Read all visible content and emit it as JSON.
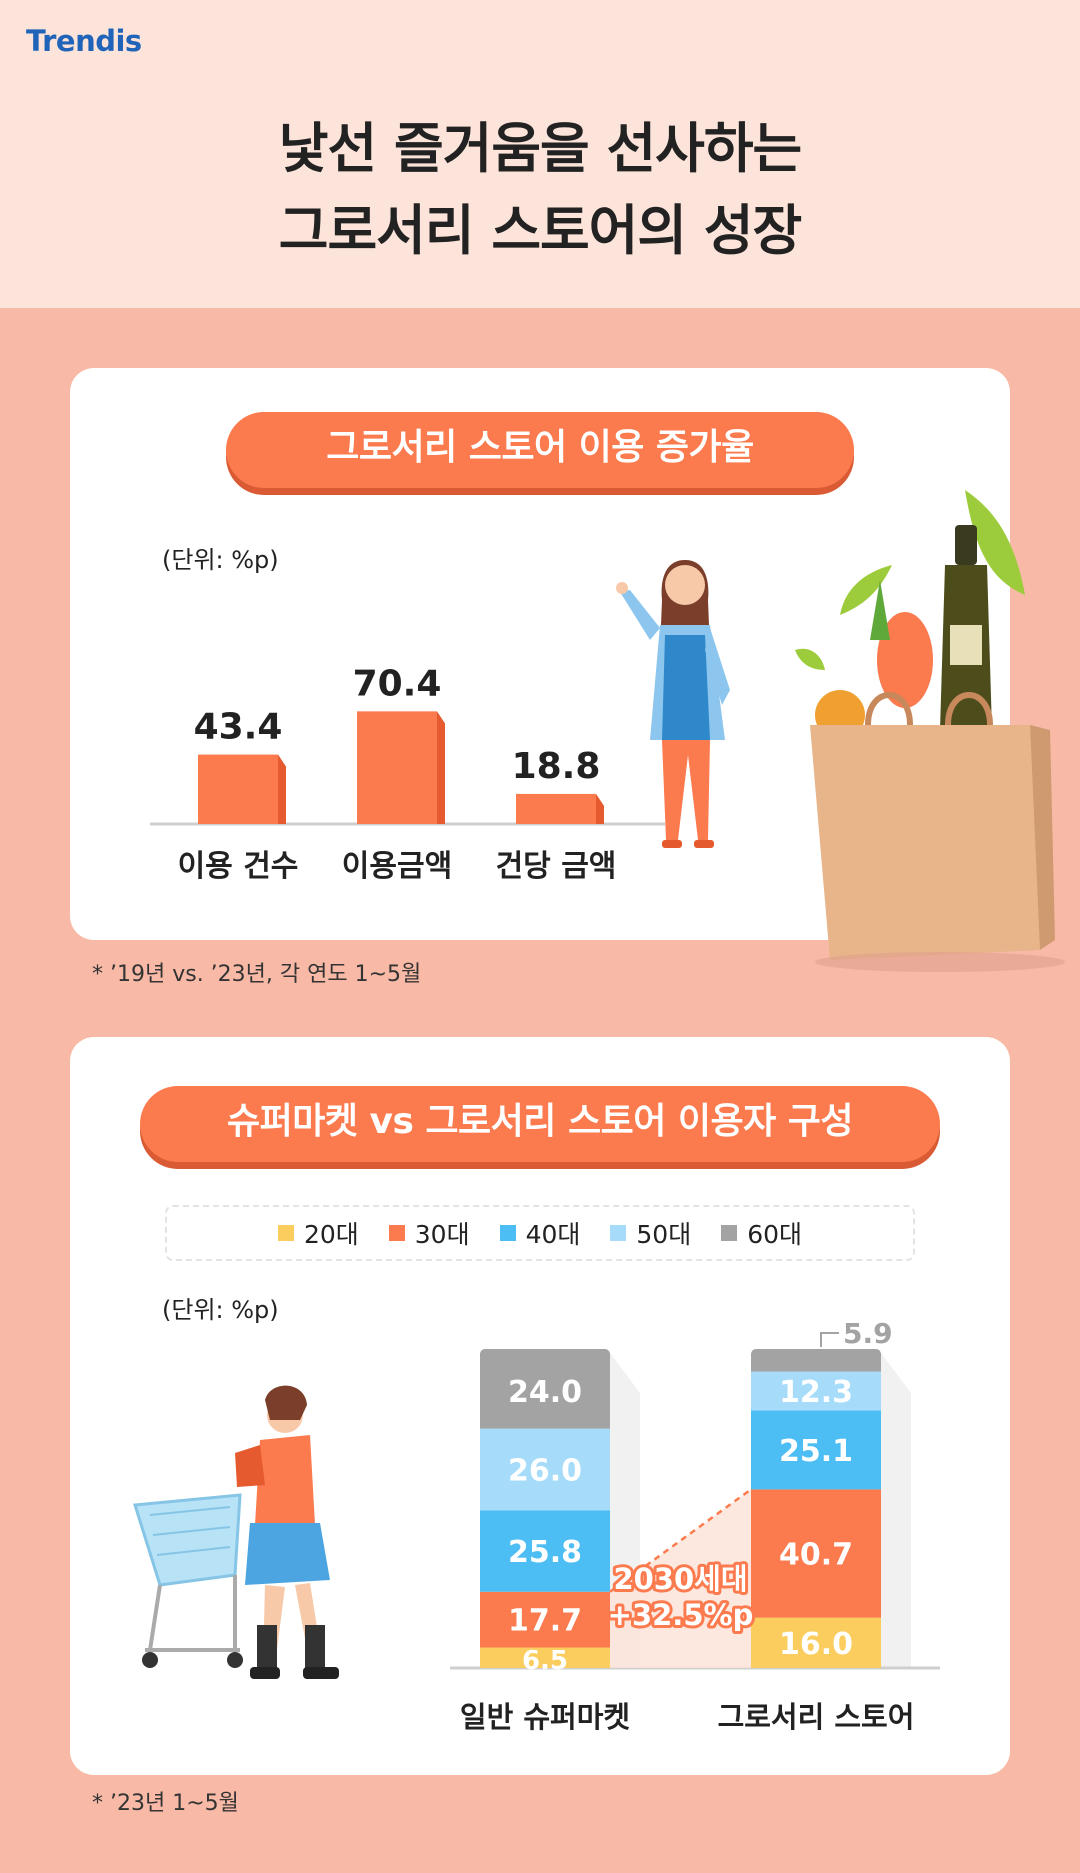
{
  "brand": "Trendis",
  "title_lines": [
    "낯선 즐거움을 선사하는",
    "그로서리 스토어의 성장"
  ],
  "section1": {
    "pill": "그로서리 스토어 이용 증가율",
    "unit": "(단위: %p)",
    "footnote": "*  ’19년 vs. ’23년, 각 연도 1~5월"
  },
  "section2": {
    "pill": "슈퍼마켓 vs 그로서리 스토어 이용자 구성",
    "unit": "(단위: %p)",
    "callout_line1": "2030세대",
    "callout_line2": "+32.5%p",
    "footnote": "*  ’23년 1~5월"
  },
  "colors": {
    "bar": "#fb7a4e",
    "bar_side": "#e55a2e",
    "20대": "#fbcd5e",
    "30대": "#fb7a4e",
    "40대": "#4cbef4",
    "50대": "#a6dcfa",
    "60대": "#a3a3a3"
  },
  "chart_data": [
    {
      "type": "bar",
      "categories": [
        "이용 건수",
        "이용금액",
        "건당 금액"
      ],
      "values": [
        43.4,
        70.4,
        18.8
      ],
      "ylim": [
        0,
        100
      ]
    },
    {
      "type": "bar",
      "stacked": true,
      "categories": [
        "일반 슈퍼마켓",
        "그로서리 스토어"
      ],
      "series": [
        {
          "name": "20대",
          "values": [
            6.5,
            16.0
          ]
        },
        {
          "name": "30대",
          "values": [
            17.7,
            40.7
          ]
        },
        {
          "name": "40대",
          "values": [
            25.8,
            25.1
          ]
        },
        {
          "name": "50대",
          "values": [
            26.0,
            12.3
          ]
        },
        {
          "name": "60대",
          "values": [
            24.0,
            5.9
          ]
        }
      ],
      "ylim": [
        0,
        100
      ],
      "legend": "top"
    }
  ]
}
